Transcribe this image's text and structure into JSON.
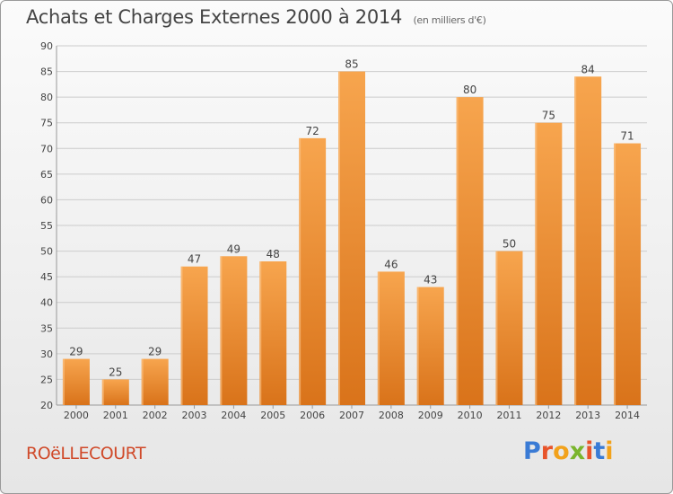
{
  "header": {
    "title": "Achats et Charges Externes 2000 à 2014",
    "subtitle": "(en milliers d'€)"
  },
  "footer": {
    "commune": "ROëLLECOURT",
    "brand": "Proxiti",
    "brand_colors": [
      "#3a7bd5",
      "#e8542a",
      "#f2a21b",
      "#7ab52c",
      "#e8542a",
      "#3a7bd5",
      "#f2a21b"
    ]
  },
  "colors": {
    "bar_top": "#f7a54e",
    "bar_bottom": "#d9731a",
    "grid": "#cccccc",
    "label": "#444444"
  },
  "chart_data": {
    "type": "bar",
    "categories": [
      "2000",
      "2001",
      "2002",
      "2003",
      "2004",
      "2005",
      "2006",
      "2007",
      "2008",
      "2009",
      "2010",
      "2011",
      "2012",
      "2013",
      "2014"
    ],
    "values": [
      29,
      25,
      29,
      47,
      49,
      48,
      72,
      85,
      46,
      43,
      80,
      50,
      75,
      84,
      71
    ],
    "ylim": [
      20,
      90
    ],
    "yticks": [
      20,
      25,
      30,
      35,
      40,
      45,
      50,
      55,
      60,
      65,
      70,
      75,
      80,
      85,
      90
    ],
    "grid": true,
    "data_labels": true
  }
}
